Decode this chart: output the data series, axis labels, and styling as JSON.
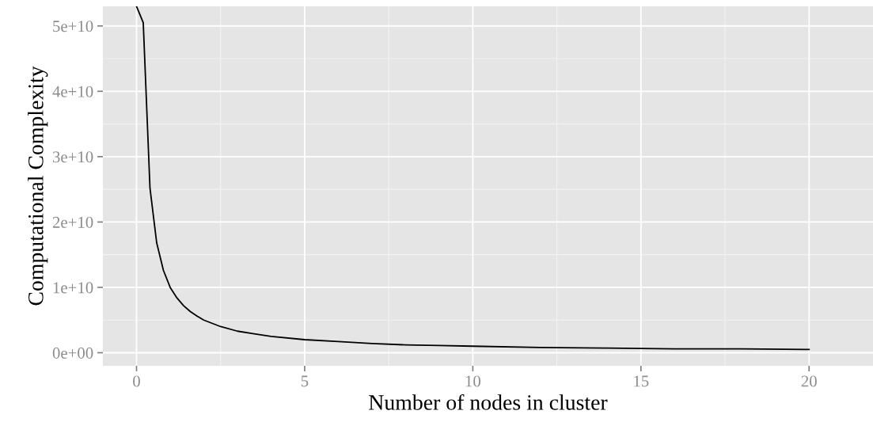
{
  "chart_data": {
    "type": "line",
    "xlabel": "Number of nodes in cluster",
    "ylabel": "Computational Complexity",
    "x": [
      0,
      0.2,
      0.4,
      0.6,
      0.8,
      1.0,
      1.2,
      1.4,
      1.6,
      1.8,
      2.0,
      2.5,
      3,
      3.5,
      4,
      5,
      6,
      7,
      8,
      9,
      10,
      12,
      14,
      16,
      18,
      20
    ],
    "series": [
      {
        "color": "#000000",
        "values": [
          53000000000.0,
          50500000000.0,
          25200000000.0,
          16800000000.0,
          12600000000.0,
          10000000000.0,
          8400000000.0,
          7200000000.0,
          6300000000.0,
          5600000000.0,
          5000000000.0,
          4000000000.0,
          3300000000.0,
          2900000000.0,
          2500000000.0,
          2000000000.0,
          1700000000.0,
          1400000000.0,
          1200000000.0,
          1100000000.0,
          1000000000.0,
          800000000.0,
          700000000.0,
          600000000.0,
          600000000.0,
          500000000.0
        ]
      }
    ],
    "xlim": [
      -1,
      21.9
    ],
    "xticks": [
      0,
      5,
      10,
      15,
      20
    ],
    "ylim": [
      -2000000000.0,
      53000000000.0
    ],
    "yticks": [
      {
        "value": 0,
        "label": "0e+00"
      },
      {
        "value": 10000000000.0,
        "label": "1e+10"
      },
      {
        "value": 20000000000.0,
        "label": "2e+10"
      },
      {
        "value": 30000000000.0,
        "label": "3e+10"
      },
      {
        "value": 40000000000.0,
        "label": "4e+10"
      },
      {
        "value": 50000000000.0,
        "label": "5e+10"
      }
    ],
    "grid": true,
    "marker": "none",
    "line_style": "solid"
  }
}
